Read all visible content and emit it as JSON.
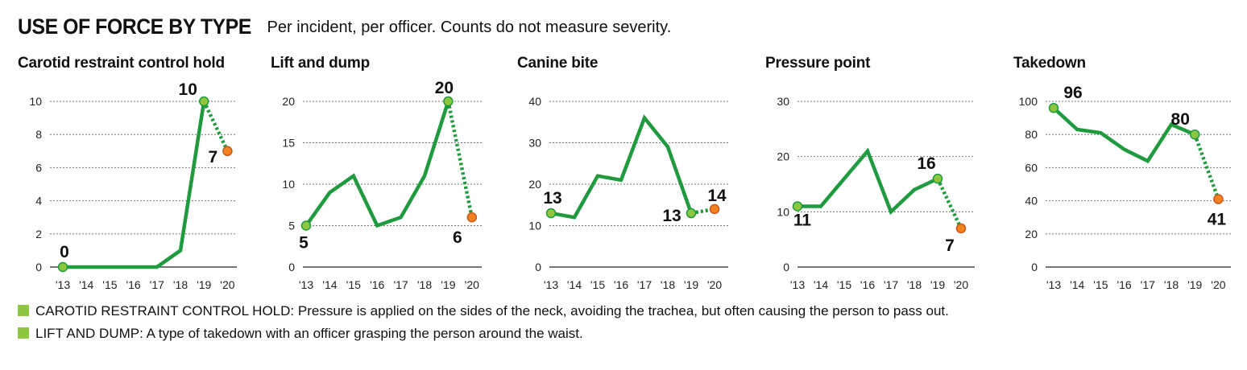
{
  "header": {
    "title": "USE OF FORCE BY TYPE",
    "subtitle": "Per incident, per officer. Counts do not measure severity."
  },
  "colors": {
    "line": "#1f9a3e",
    "point_fill": "#8dc63f",
    "projection_fill": "#f58220",
    "grid": "#777777"
  },
  "x_tick_labels": [
    "'13",
    "'14",
    "'15",
    "'16",
    "'17",
    "'18",
    "'19",
    "'20"
  ],
  "chart_data": [
    {
      "type": "line",
      "title": "Carotid restraint control hold",
      "categories": [
        "'13",
        "'14",
        "'15",
        "'16",
        "'17",
        "'18",
        "'19",
        "'20"
      ],
      "values": [
        0,
        0,
        0,
        0,
        0,
        1,
        10,
        7
      ],
      "final_segment_dotted": true,
      "ylim": [
        0,
        10
      ],
      "yticks": [
        0,
        2,
        4,
        6,
        8,
        10
      ],
      "data_labels": [
        {
          "index": 0,
          "text": "0"
        },
        {
          "index": 6,
          "text": "10"
        },
        {
          "index": 7,
          "text": "7"
        }
      ]
    },
    {
      "type": "line",
      "title": "Lift and dump",
      "categories": [
        "'13",
        "'14",
        "'15",
        "'16",
        "'17",
        "'18",
        "'19",
        "'20"
      ],
      "values": [
        5,
        9,
        11,
        5,
        6,
        11,
        20,
        6
      ],
      "final_segment_dotted": true,
      "ylim": [
        0,
        20
      ],
      "yticks": [
        0,
        5,
        10,
        15,
        20
      ],
      "data_labels": [
        {
          "index": 0,
          "text": "5"
        },
        {
          "index": 6,
          "text": "20"
        },
        {
          "index": 7,
          "text": "6"
        }
      ]
    },
    {
      "type": "line",
      "title": "Canine bite",
      "categories": [
        "'13",
        "'14",
        "'15",
        "'16",
        "'17",
        "'18",
        "'19",
        "'20"
      ],
      "values": [
        13,
        12,
        22,
        21,
        36,
        29,
        13,
        14
      ],
      "final_segment_dotted": true,
      "ylim": [
        0,
        40
      ],
      "yticks": [
        0,
        10,
        20,
        30,
        40
      ],
      "data_labels": [
        {
          "index": 0,
          "text": "13"
        },
        {
          "index": 6,
          "text": "13"
        },
        {
          "index": 7,
          "text": "14"
        }
      ]
    },
    {
      "type": "line",
      "title": "Pressure point",
      "categories": [
        "'13",
        "'14",
        "'15",
        "'16",
        "'17",
        "'18",
        "'19",
        "'20"
      ],
      "values": [
        11,
        11,
        16,
        21,
        10,
        14,
        16,
        7
      ],
      "final_segment_dotted": true,
      "ylim": [
        0,
        30
      ],
      "yticks": [
        0,
        10,
        20,
        30
      ],
      "data_labels": [
        {
          "index": 0,
          "text": "11"
        },
        {
          "index": 6,
          "text": "16"
        },
        {
          "index": 7,
          "text": "7"
        }
      ]
    },
    {
      "type": "line",
      "title": "Takedown",
      "categories": [
        "'13",
        "'14",
        "'15",
        "'16",
        "'17",
        "'18",
        "'19",
        "'20"
      ],
      "values": [
        96,
        83,
        81,
        71,
        64,
        86,
        80,
        41
      ],
      "final_segment_dotted": true,
      "ylim": [
        0,
        100
      ],
      "yticks": [
        0,
        20,
        40,
        60,
        80,
        100
      ],
      "data_labels": [
        {
          "index": 0,
          "text": "96"
        },
        {
          "index": 6,
          "text": "80"
        },
        {
          "index": 7,
          "text": "41"
        }
      ]
    }
  ],
  "legend": [
    {
      "text": "CAROTID RESTRAINT CONTROL HOLD: Pressure is applied on the sides of the neck, avoiding the trachea, but often causing the person to pass out."
    },
    {
      "text": "LIFT AND DUMP: A type of takedown with an officer grasping the person around the waist."
    }
  ]
}
